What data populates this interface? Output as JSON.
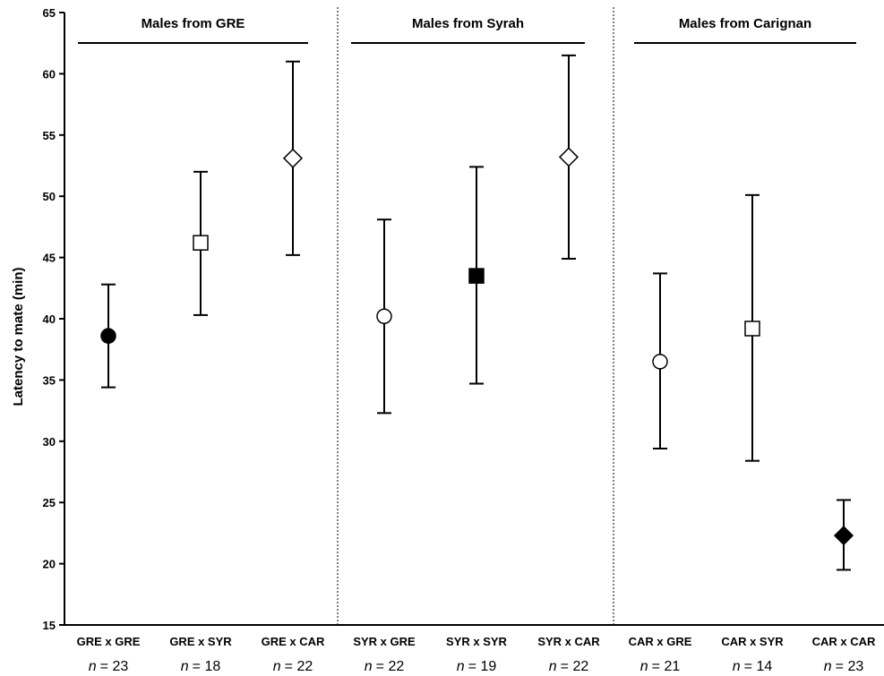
{
  "chart_data": {
    "type": "scatter",
    "title": "",
    "xlabel": "",
    "ylabel": "Latency to mate (min)",
    "ylim": [
      15,
      65
    ],
    "yticks": [
      "15",
      "20",
      "25",
      "30",
      "35",
      "40",
      "45",
      "50",
      "55",
      "60",
      "65"
    ],
    "grid": false,
    "groups": [
      {
        "title": "Males from GRE"
      },
      {
        "title": "Males from Syrah"
      },
      {
        "title": "Males from Carignan"
      }
    ],
    "points": [
      {
        "label": "GRE x GRE",
        "n_prefix": "n",
        "n_value": "= 23",
        "mean": 38.6,
        "lower": 34.4,
        "upper": 42.8,
        "marker": "circle",
        "fill": "#000000"
      },
      {
        "label": "GRE x SYR",
        "n_prefix": "n",
        "n_value": "= 18",
        "mean": 46.2,
        "lower": 40.3,
        "upper": 52.0,
        "marker": "square",
        "fill": "#ffffff"
      },
      {
        "label": "GRE x CAR",
        "n_prefix": "n",
        "n_value": "= 22",
        "mean": 53.1,
        "lower": 45.2,
        "upper": 61.0,
        "marker": "diamond",
        "fill": "#ffffff"
      },
      {
        "label": "SYR x GRE",
        "n_prefix": "n",
        "n_value": "= 22",
        "mean": 40.2,
        "lower": 32.3,
        "upper": 48.1,
        "marker": "circle",
        "fill": "#ffffff"
      },
      {
        "label": "SYR x SYR",
        "n_prefix": "n",
        "n_value": "= 19",
        "mean": 43.5,
        "lower": 34.7,
        "upper": 52.4,
        "marker": "square",
        "fill": "#000000"
      },
      {
        "label": "SYR x CAR",
        "n_prefix": "n",
        "n_value": "= 22",
        "mean": 53.2,
        "lower": 44.9,
        "upper": 61.5,
        "marker": "diamond",
        "fill": "#ffffff"
      },
      {
        "label": "CAR x GRE",
        "n_prefix": "n",
        "n_value": "= 21",
        "mean": 36.5,
        "lower": 29.4,
        "upper": 43.7,
        "marker": "circle",
        "fill": "#ffffff"
      },
      {
        "label": "CAR x SYR",
        "n_prefix": "n",
        "n_value": "= 14",
        "mean": 39.2,
        "lower": 28.4,
        "upper": 50.1,
        "marker": "square",
        "fill": "#ffffff"
      },
      {
        "label": "CAR x CAR",
        "n_prefix": "n",
        "n_value": "= 23",
        "mean": 22.3,
        "lower": 19.5,
        "upper": 25.2,
        "marker": "diamond",
        "fill": "#000000"
      }
    ]
  }
}
